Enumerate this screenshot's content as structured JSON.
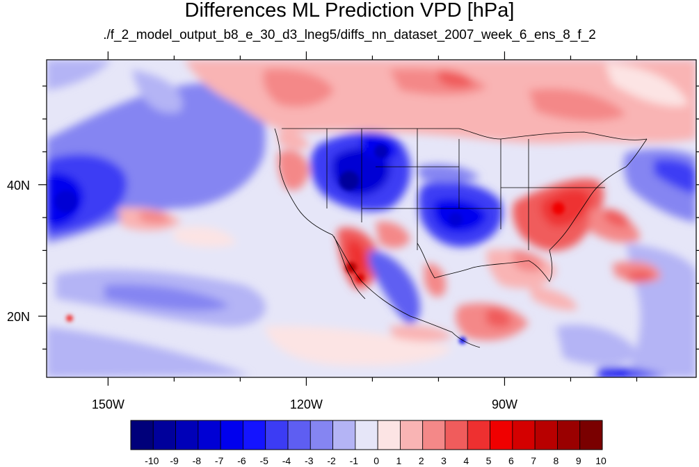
{
  "title": "Differences ML Prediction VPD [hPa]",
  "subtitle": "./f_2_model_output_b8_e_30_d3_lneg5/diffs_nn_dataset_2007_week_6_ens_8_f_2",
  "map": {
    "lon_range": [
      -159.3,
      -61
    ],
    "lat_range": [
      10.7,
      59
    ],
    "lon_ticks": [
      {
        "value": -150,
        "label": "150W"
      },
      {
        "value": -120,
        "label": "120W"
      },
      {
        "value": -90,
        "label": "90W"
      }
    ],
    "lat_ticks": [
      {
        "value": 40,
        "label": "40N"
      },
      {
        "value": 20,
        "label": "20N"
      }
    ],
    "minor_lon_ticks": [
      -140,
      -130,
      -110,
      -100,
      -80,
      -70
    ],
    "minor_lat_ticks": [
      15,
      25,
      30,
      35,
      45,
      50,
      55
    ]
  },
  "colorbar": {
    "labels": [
      "-10",
      "-9",
      "-8",
      "-7",
      "-6",
      "-5",
      "-4",
      "-3",
      "-2",
      "-1",
      "0",
      "1",
      "2",
      "3",
      "4",
      "5",
      "6",
      "7",
      "8",
      "9",
      "10"
    ],
    "colors": [
      "#00007a",
      "#00009b",
      "#0000b8",
      "#0000d4",
      "#0000ee",
      "#1414ff",
      "#3c3cf4",
      "#5e5ef2",
      "#8585f2",
      "#b4b4f5",
      "#e6e6f8",
      "#fce4e4",
      "#f9b4b4",
      "#f48888",
      "#f05c5c",
      "#ee3030",
      "#f00000",
      "#d40000",
      "#b80000",
      "#9a0000",
      "#7a0000"
    ]
  },
  "legend_unit": "hPa"
}
